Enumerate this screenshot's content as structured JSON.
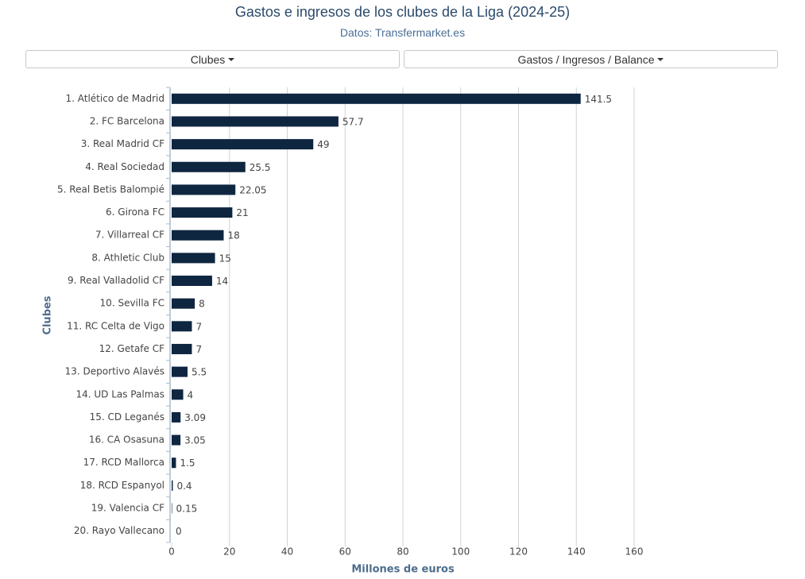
{
  "controls": [
    "Clubes",
    "Gastos / Ingresos / Balance"
  ],
  "chart_data": {
    "type": "hbar",
    "title": "Gastos e ingresos de los clubes de la Liga (2024-25)",
    "subtitle": "Datos: Transfermarket.es",
    "x_label": "Millones de euros",
    "y_label": "Clubes",
    "categories": [
      "1. Atlético de Madrid",
      "2. FC Barcelona",
      "3. Real Madrid CF",
      "4. Real Sociedad",
      "5. Real Betis Balompié",
      "6. Girona FC",
      "7. Villarreal CF",
      "8. Athletic Club",
      "9. Real Valladolid CF",
      "10. Sevilla FC",
      "11. RC Celta de Vigo",
      "12. Getafe CF",
      "13. Deportivo Alavés",
      "14. UD Las Palmas",
      "15. CD Leganés",
      "16. CA Osasuna",
      "17. RCD Mallorca",
      "18. RCD Espanyol",
      "19. Valencia CF",
      "20. Rayo Vallecano"
    ],
    "values": [
      141.5,
      57.7,
      49,
      25.5,
      22.05,
      21,
      18,
      15,
      14,
      8,
      7,
      7,
      5.5,
      4,
      3.09,
      3.05,
      1.5,
      0.4,
      0.15,
      0
    ],
    "color": "#0f2640",
    "xlim": [
      0,
      160
    ],
    "xticks": [
      0,
      20,
      40,
      60,
      80,
      100,
      120,
      140,
      160
    ],
    "grid": true
  }
}
